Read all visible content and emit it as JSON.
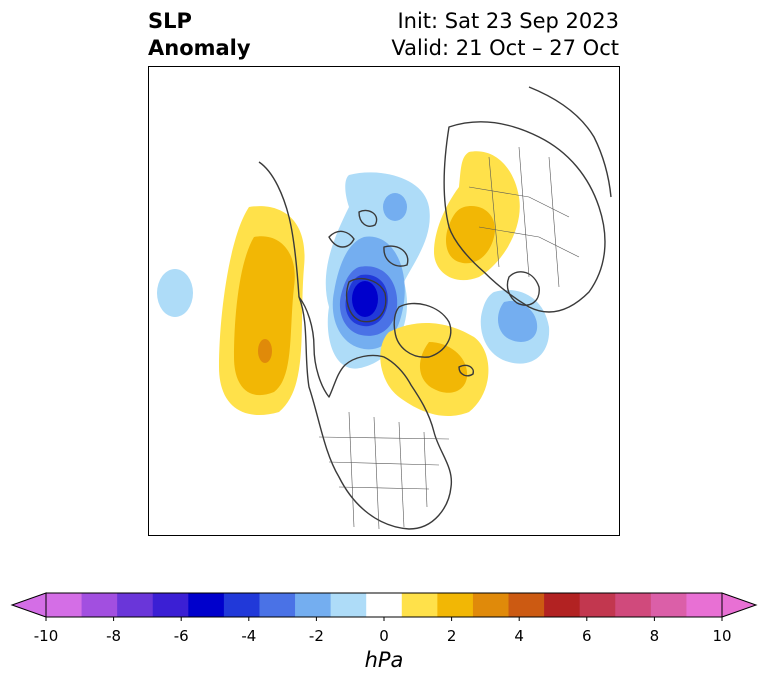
{
  "title": {
    "left_line1": "SLP",
    "left_line2": "Anomaly",
    "right_line1": "Init: Sat 23 Sep 2023",
    "right_line2": "Valid: 21 Oct – 27 Oct"
  },
  "colorbar": {
    "unit": "hPa",
    "ticks": [
      "-10",
      "-8",
      "-6",
      "-4",
      "-2",
      "0",
      "2",
      "4",
      "6",
      "8",
      "10"
    ],
    "levels": [
      -10,
      -9,
      -8,
      -7,
      -6,
      -5,
      -4,
      -3,
      -2,
      -1,
      1,
      2,
      3,
      4,
      5,
      6,
      7,
      8,
      9,
      10
    ],
    "colors": {
      "under": "#d46ee6",
      "bins": [
        "#d46ee6",
        "#a24fe0",
        "#6a36d9",
        "#3b1fd4",
        "#0000cc",
        "#2139d9",
        "#4a72e6",
        "#74aef0",
        "#aedcf8",
        "#ffffff",
        "#ffe14a",
        "#f2b705",
        "#e08a0a",
        "#cc5a12",
        "#b22222",
        "#c2374f",
        "#d04a7c",
        "#db5fa8",
        "#e870d4"
      ],
      "over": "#e870d4"
    }
  },
  "map": {
    "projection": "north-polar-stereographic",
    "region": "Northern Hemisphere",
    "features": [
      {
        "name": "aleutian-high-anomaly",
        "sign": "positive",
        "peak_hPa": 4
      },
      {
        "name": "hudson-bay-low-anomaly",
        "sign": "negative",
        "peak_hPa": -6
      },
      {
        "name": "greenland-high-anomaly",
        "sign": "positive",
        "peak_hPa": 3
      },
      {
        "name": "siberia-high-anomaly",
        "sign": "positive",
        "peak_hPa": 3
      },
      {
        "name": "north-atlantic-low-anomaly",
        "sign": "negative",
        "peak_hPa": -3
      },
      {
        "name": "canadian-arctic-low-anomaly",
        "sign": "negative",
        "peak_hPa": -2
      }
    ]
  }
}
